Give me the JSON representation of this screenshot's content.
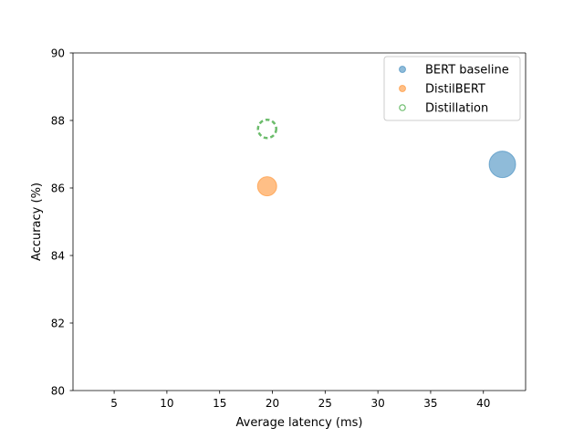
{
  "chart_data": {
    "type": "scatter",
    "title": "",
    "xlabel": "Average latency (ms)",
    "ylabel": "Accuracy (%)",
    "xlim": [
      1.1,
      44.0
    ],
    "ylim": [
      80,
      90
    ],
    "xticks": [
      5,
      10,
      15,
      20,
      25,
      30,
      35,
      40
    ],
    "yticks": [
      80,
      82,
      84,
      86,
      88,
      90
    ],
    "grid": false,
    "legend_position": "top-right",
    "series": [
      {
        "name": "BERT baseline",
        "color": "#1f77b4",
        "marker": "filled-circle",
        "points": [
          {
            "x": 41.8,
            "y": 86.7
          }
        ]
      },
      {
        "name": "DistilBERT",
        "color": "#ff7f0e",
        "marker": "filled-circle",
        "points": [
          {
            "x": 19.5,
            "y": 86.05
          }
        ]
      },
      {
        "name": "Distillation",
        "color": "#2ca02c",
        "marker": "dashed-hollow-circle",
        "points": [
          {
            "x": 19.5,
            "y": 87.75
          }
        ]
      }
    ]
  }
}
